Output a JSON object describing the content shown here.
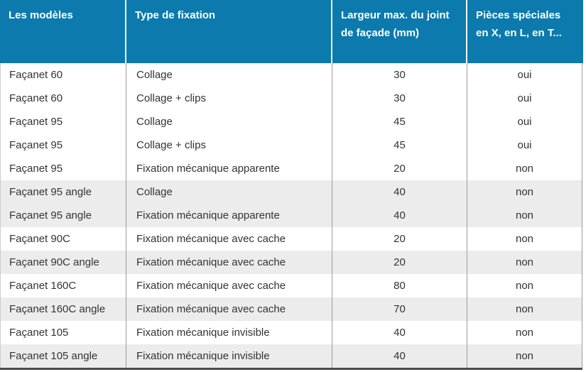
{
  "table": {
    "columns": [
      {
        "label": "Les modèles"
      },
      {
        "label": "Type de fixation"
      },
      {
        "label": "Largeur max. du joint\nde façade (mm)"
      },
      {
        "label": "Pièces spéciales\nen X, en L, en T..."
      }
    ],
    "rows": [
      {
        "model": "Façanet 60",
        "fixation": "Collage",
        "largeur": "30",
        "pieces": "oui",
        "shaded": false
      },
      {
        "model": "Façanet 60",
        "fixation": "Collage + clips",
        "largeur": "30",
        "pieces": "oui",
        "shaded": false
      },
      {
        "model": "Façanet 95",
        "fixation": "Collage",
        "largeur": "45",
        "pieces": "oui",
        "shaded": false
      },
      {
        "model": "Façanet 95",
        "fixation": "Collage + clips",
        "largeur": "45",
        "pieces": "oui",
        "shaded": false
      },
      {
        "model": "Façanet 95",
        "fixation": "Fixation mécanique apparente",
        "largeur": "20",
        "pieces": "non",
        "shaded": false
      },
      {
        "model": "Façanet 95 angle",
        "fixation": "Collage",
        "largeur": "40",
        "pieces": "non",
        "shaded": true
      },
      {
        "model": "Façanet 95 angle",
        "fixation": "Fixation mécanique apparente",
        "largeur": "40",
        "pieces": "non",
        "shaded": true
      },
      {
        "model": "Façanet 90C",
        "fixation": "Fixation mécanique avec cache",
        "largeur": "20",
        "pieces": "non",
        "shaded": false
      },
      {
        "model": "Façanet 90C angle",
        "fixation": "Fixation mécanique avec cache",
        "largeur": "20",
        "pieces": "non",
        "shaded": true
      },
      {
        "model": "Façanet 160C",
        "fixation": "Fixation mécanique avec cache",
        "largeur": "80",
        "pieces": "non",
        "shaded": false
      },
      {
        "model": "Façanet 160C angle",
        "fixation": "Fixation mécanique avec cache",
        "largeur": "70",
        "pieces": "non",
        "shaded": true
      },
      {
        "model": "Façanet 105",
        "fixation": "Fixation mécanique invisible",
        "largeur": "40",
        "pieces": "non",
        "shaded": false
      },
      {
        "model": "Façanet 105 angle",
        "fixation": "Fixation mécanique invisible",
        "largeur": "40",
        "pieces": "non",
        "shaded": true
      }
    ]
  },
  "colors": {
    "header_bg": "#0c7aac",
    "header_text": "#ffffff",
    "shaded_row_bg": "#ececec",
    "body_text": "#333333",
    "grid_line": "#9b9b9b",
    "left_border": "#cccccc",
    "bottom_border": "#4b4b4b"
  }
}
